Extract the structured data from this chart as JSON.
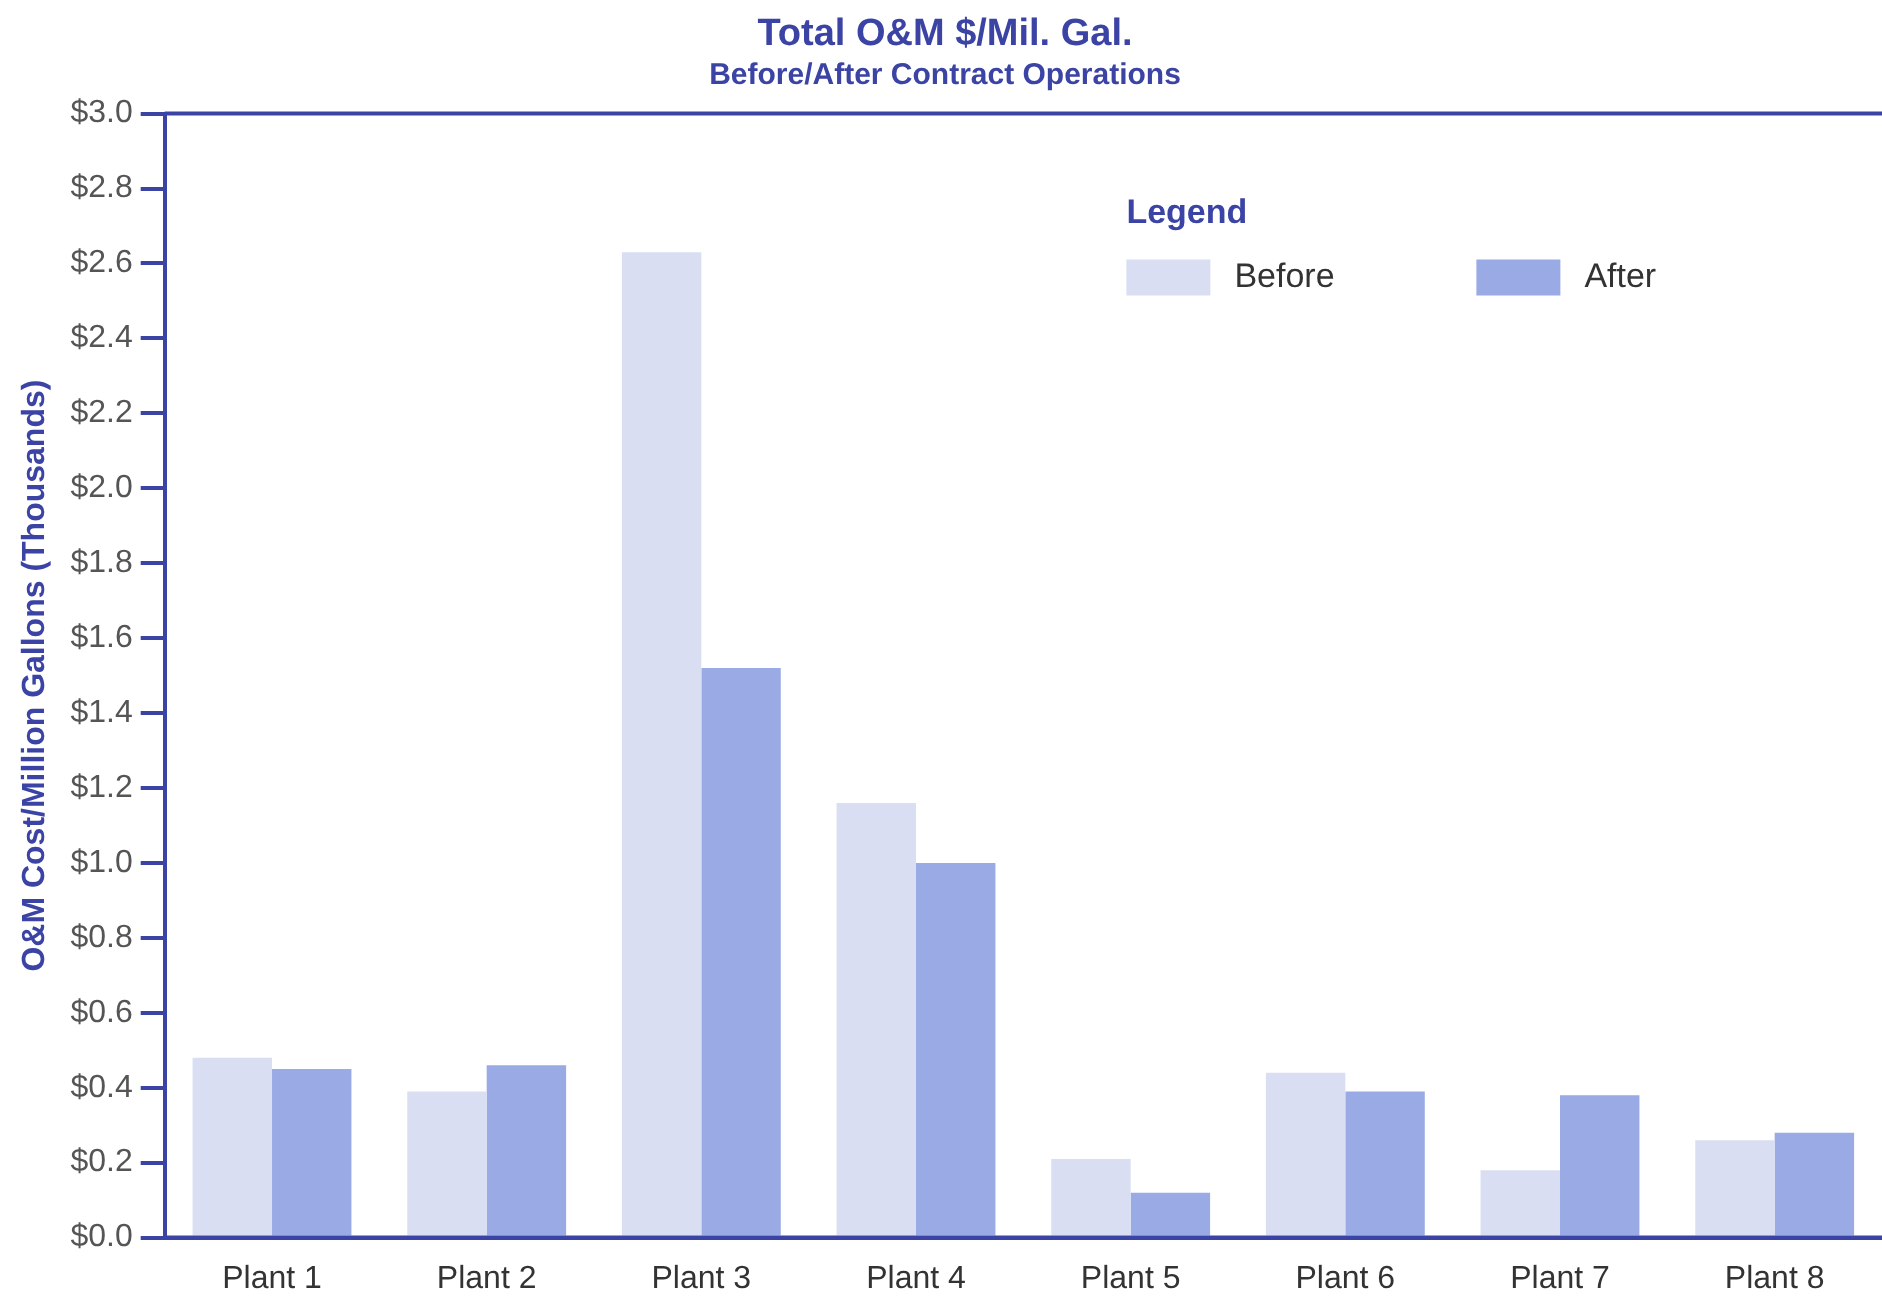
{
  "chart_data": {
    "type": "bar",
    "title": "Total O&M $/Mil. Gal.",
    "subtitle": "Before/After Contract Operations",
    "ylabel": "O&M Cost/Million Gallons (Thousands)",
    "legend_title": "Legend",
    "categories": [
      "Plant 1",
      "Plant 2",
      "Plant 3",
      "Plant 4",
      "Plant 5",
      "Plant 6",
      "Plant 7",
      "Plant 8"
    ],
    "series": [
      {
        "name": "Before",
        "color": "#d9def2",
        "values": [
          0.48,
          0.39,
          2.63,
          1.16,
          0.21,
          0.44,
          0.18,
          0.26
        ]
      },
      {
        "name": "After",
        "color": "#9aaae4",
        "values": [
          0.45,
          0.46,
          1.52,
          1.0,
          0.12,
          0.39,
          0.38,
          0.28
        ]
      }
    ],
    "ylim": [
      0,
      3
    ],
    "yticks": [
      {
        "value": 0,
        "label": "$0.0"
      },
      {
        "value": 0.2,
        "label": "$0.2"
      },
      {
        "value": 0.4,
        "label": "$0.4"
      },
      {
        "value": 0.6,
        "label": "$0.6"
      },
      {
        "value": 0.8,
        "label": "$0.8"
      },
      {
        "value": 1.0,
        "label": "$1.0"
      },
      {
        "value": 1.2,
        "label": "$1.2"
      },
      {
        "value": 1.4,
        "label": "$1.4"
      },
      {
        "value": 1.6,
        "label": "$1.6"
      },
      {
        "value": 1.8,
        "label": "$1.8"
      },
      {
        "value": 2.0,
        "label": "$2.0"
      },
      {
        "value": 2.2,
        "label": "$2.2"
      },
      {
        "value": 2.4,
        "label": "$2.4"
      },
      {
        "value": 2.6,
        "label": "$2.6"
      },
      {
        "value": 2.8,
        "label": "$2.8"
      },
      {
        "value": 3.0,
        "label": "$3.0"
      }
    ],
    "grid": false,
    "legend": "top right"
  }
}
